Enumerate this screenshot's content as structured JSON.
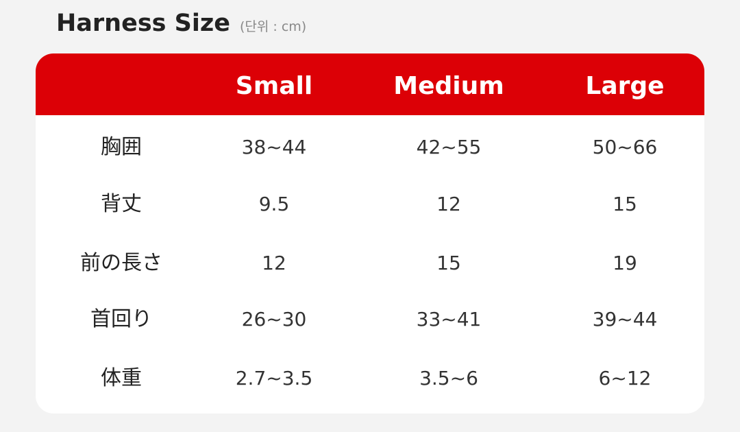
{
  "title": "Harness Size",
  "unit": "(단위 : cm)",
  "colors": {
    "header": "#dc0006",
    "header_text": "#ffffff",
    "background": "#f3f3f3"
  },
  "columns": [
    "Small",
    "Medium",
    "Large"
  ],
  "rows": [
    {
      "label": "胸囲",
      "values": [
        "38~44",
        "42~55",
        "50~66"
      ]
    },
    {
      "label": "背丈",
      "values": [
        "9.5",
        "12",
        "15"
      ]
    },
    {
      "label": "前の長さ",
      "values": [
        "12",
        "15",
        "19"
      ]
    },
    {
      "label": "首回り",
      "values": [
        "26~30",
        "33~41",
        "39~44"
      ]
    },
    {
      "label": "体重",
      "values": [
        "2.7~3.5",
        "3.5~6",
        "6~12"
      ]
    }
  ]
}
